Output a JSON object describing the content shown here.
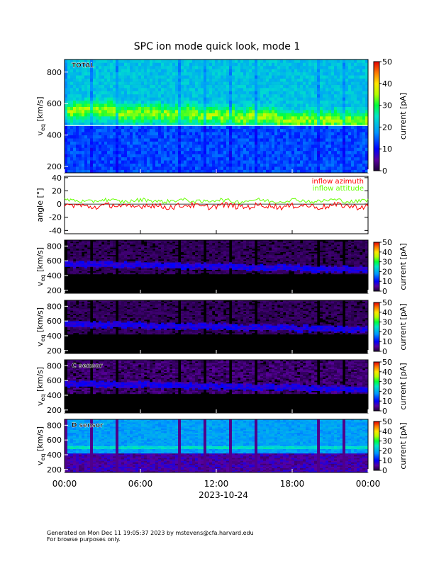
{
  "title": "SPC ion mode quick look, mode 1",
  "footer": {
    "generated": "Generated on Mon Dec 11 19:05:37 2023 by mstevens@cfa.harvard.edu",
    "note": "For browse purposes only."
  },
  "x_axis": {
    "tick_labels": [
      "00:00",
      "06:00",
      "12:00",
      "18:00",
      "00:00"
    ],
    "tick_hours": [
      0,
      6,
      12,
      18,
      24
    ],
    "date_label": "2023-10-24"
  },
  "colors": {
    "azimuth": "#ff0000",
    "attitude": "#66ff00",
    "background_dark": "#000000"
  },
  "chart_data": [
    {
      "type": "heatmap",
      "id": "total",
      "label": "TOTAL",
      "ylabel": "v_eq [km/s]",
      "ylabel_main": "v",
      "ylabel_sub": "eq",
      "ylabel_unit": "[km/s]",
      "ylim": [
        160,
        880
      ],
      "yticks": [
        200,
        400,
        600,
        800
      ],
      "colorbar": {
        "label": "current [pA]",
        "range": [
          0,
          50
        ],
        "ticks": [
          0,
          10,
          20,
          30,
          40,
          50
        ]
      },
      "scheme": "total"
    },
    {
      "type": "line",
      "id": "angles",
      "ylabel": "angle [°]",
      "ylim": [
        -45,
        42
      ],
      "yticks": [
        -40,
        -20,
        0,
        20,
        40
      ],
      "series": [
        {
          "name": "inflow azimuth",
          "color": "#ff0000",
          "mean": -3
        },
        {
          "name": "inflow attitude",
          "color": "#66ff00",
          "mean": 5
        }
      ]
    },
    {
      "type": "heatmap",
      "id": "sensor-a",
      "label": "",
      "ylabel_main": "v",
      "ylabel_sub": "eq",
      "ylabel_unit": "[km/s]",
      "ylim": [
        160,
        880
      ],
      "yticks": [
        200,
        400,
        600,
        800
      ],
      "colorbar": {
        "label": "current [pA]",
        "range": [
          0,
          50
        ],
        "ticks": [
          0,
          10,
          20,
          30,
          40,
          50
        ]
      },
      "scheme": "faint"
    },
    {
      "type": "heatmap",
      "id": "sensor-b",
      "label": "",
      "ylabel_main": "v",
      "ylabel_sub": "eq",
      "ylabel_unit": "[km/s]",
      "ylim": [
        160,
        880
      ],
      "yticks": [
        200,
        400,
        600,
        800
      ],
      "colorbar": {
        "label": "current [pA]",
        "range": [
          0,
          50
        ],
        "ticks": [
          0,
          10,
          20,
          30,
          40,
          50
        ]
      },
      "scheme": "faint"
    },
    {
      "type": "heatmap",
      "id": "sensor-c",
      "label": "C sensor",
      "ylabel_main": "v",
      "ylabel_sub": "eq",
      "ylabel_unit": "[km/s]",
      "ylim": [
        160,
        880
      ],
      "yticks": [
        200,
        400,
        600,
        800
      ],
      "colorbar": {
        "label": "current [pA]",
        "range": [
          0,
          50
        ],
        "ticks": [
          0,
          10,
          20,
          30,
          40,
          50
        ]
      },
      "scheme": "mid"
    },
    {
      "type": "heatmap",
      "id": "sensor-d",
      "label": "D sensor",
      "ylabel_main": "v",
      "ylabel_sub": "eq",
      "ylabel_unit": "[km/s]",
      "ylim": [
        160,
        880
      ],
      "yticks": [
        200,
        400,
        600,
        800
      ],
      "colorbar": {
        "label": "current [pA]",
        "range": [
          0,
          50
        ],
        "ticks": [
          0,
          10,
          20,
          30,
          40,
          50
        ]
      },
      "scheme": "bright"
    }
  ]
}
